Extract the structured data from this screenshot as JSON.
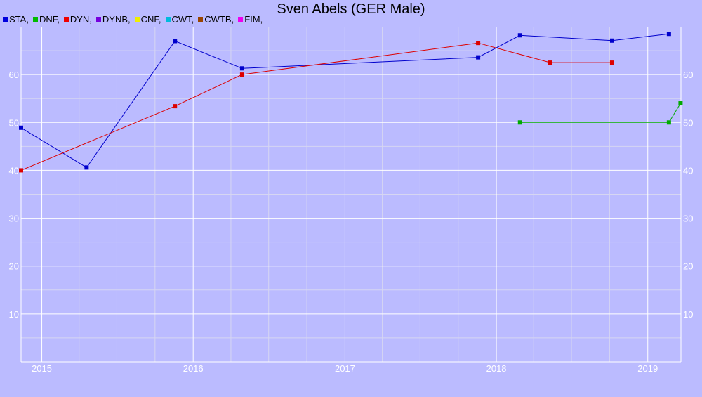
{
  "chart_data": {
    "type": "line",
    "title": "Sven Abels (GER Male)",
    "xlabel": "",
    "ylabel": "",
    "x_ticks": [
      "2015",
      "2016",
      "2017",
      "2018",
      "2019"
    ],
    "y_ticks": [
      10,
      20,
      30,
      40,
      50,
      60
    ],
    "xlim": [
      "2014-11-12",
      "2019-03-22"
    ],
    "ylim": [
      0,
      70
    ],
    "grid": true,
    "legend_position": "top-left",
    "legend": [
      {
        "label": "STA,",
        "color": "#0000dd"
      },
      {
        "label": "DNF,",
        "color": "#00bb00"
      },
      {
        "label": "DYN,",
        "color": "#ee0000"
      },
      {
        "label": "DYNB,",
        "color": "#7700dd"
      },
      {
        "label": "CNF,",
        "color": "#eeee00"
      },
      {
        "label": "CWT,",
        "color": "#00bbdd"
      },
      {
        "label": "CWTB,",
        "color": "#994400"
      },
      {
        "label": "FIM,",
        "color": "#ee00ee"
      }
    ],
    "series": [
      {
        "name": "STA",
        "color": "#0000cc",
        "x": [
          "2014-11-12",
          "2015-04-19",
          "2015-11-18",
          "2016-04-28",
          "2017-11-18",
          "2018-02-27",
          "2018-10-07",
          "2019-02-21"
        ],
        "y": [
          48.9,
          40.6,
          67.0,
          61.3,
          63.6,
          68.2,
          67.1,
          68.5
        ]
      },
      {
        "name": "DYN",
        "color": "#dd0000",
        "x": [
          "2014-11-12",
          "2015-11-18",
          "2016-04-28",
          "2017-11-18",
          "2018-05-11",
          "2018-10-07"
        ],
        "y": [
          40.0,
          53.4,
          60.0,
          66.6,
          62.5,
          62.5
        ]
      },
      {
        "name": "DNF",
        "color": "#00aa00",
        "x": [
          "2018-02-27",
          "2019-02-21",
          "2019-03-21"
        ],
        "y": [
          50.0,
          50.0,
          54.0
        ]
      }
    ]
  }
}
